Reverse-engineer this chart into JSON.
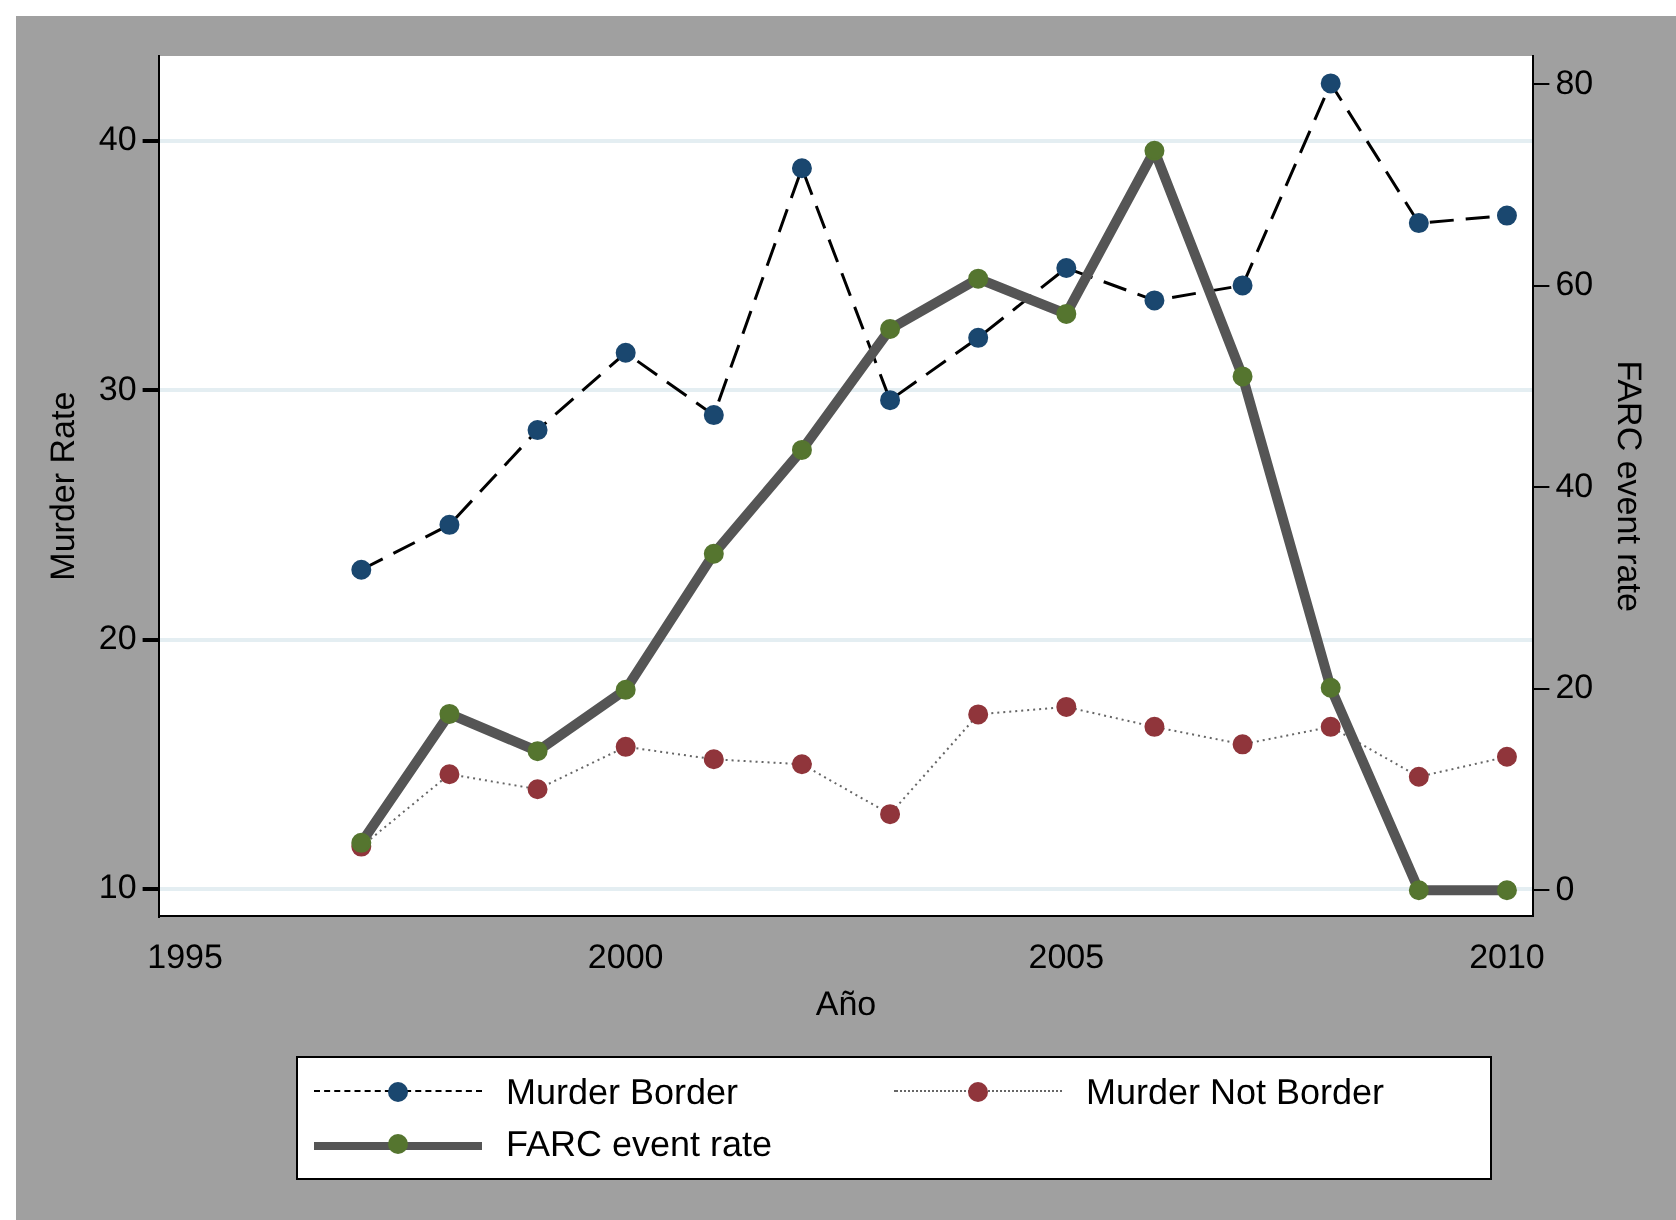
{
  "chart_data": {
    "type": "line",
    "xlabel": "Año",
    "ylabel": "Murder Rate",
    "y2label": "FARC event rate",
    "x": [
      1997,
      1998,
      1999,
      2000,
      2001,
      2002,
      2003,
      2004,
      2005,
      2006,
      2007,
      2008,
      2009,
      2010
    ],
    "series": [
      {
        "name": "Murder Border",
        "color": "#1a476f",
        "line_style": "dashed",
        "values": [
          22.8,
          24.6,
          28.4,
          31.5,
          29.0,
          38.9,
          29.6,
          32.1,
          34.9,
          33.6,
          34.2,
          42.3,
          36.7,
          37.0
        ]
      },
      {
        "name": "Murder Not Border",
        "color": "#90353b",
        "line_style": "dotted",
        "values": [
          11.7,
          14.6,
          14.0,
          15.7,
          15.2,
          15.0,
          13.0,
          17.0,
          17.3,
          16.5,
          15.8,
          16.5,
          14.5,
          15.3
        ]
      },
      {
        "name": "FARC event rate",
        "color": "#55752f",
        "line_style": "solid",
        "axis": "y2",
        "values": [
          4.7,
          17.5,
          13.8,
          19.9,
          33.4,
          43.7,
          55.7,
          60.7,
          57.2,
          73.4,
          51.0,
          20.1,
          0,
          0
        ]
      }
    ],
    "xlim": [
      1994.7,
      2010.3
    ],
    "xticks": [
      1995,
      2000,
      2005,
      2010
    ],
    "ylim": [
      8.9,
      43.4
    ],
    "yticks": [
      10,
      20,
      30,
      40
    ],
    "y2lim": [
      -2.6,
      82.8
    ],
    "y2ticks": [
      0,
      20,
      40,
      60,
      80
    ],
    "grid": "y",
    "legend": "bottom",
    "marker": "circle"
  }
}
